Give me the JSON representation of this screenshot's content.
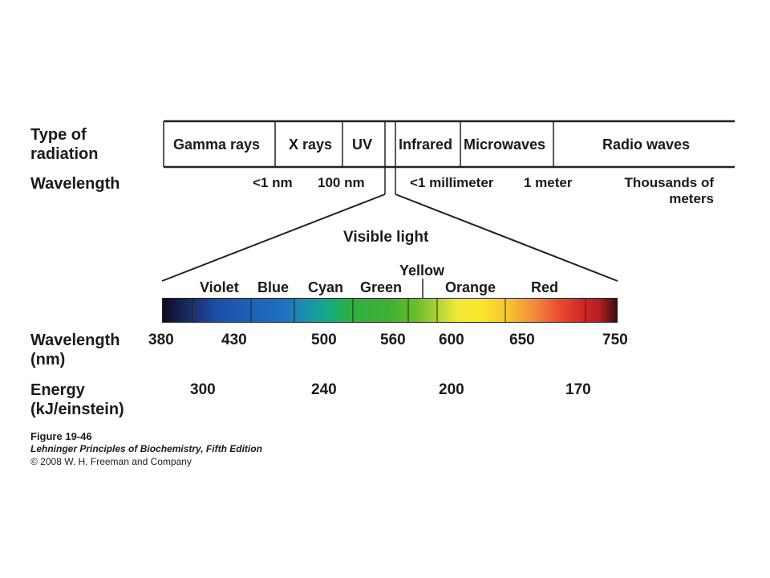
{
  "row_headers": {
    "type_of_radiation": [
      "Type of",
      "radiation"
    ],
    "wavelength": "Wavelength",
    "wavelength_nm": [
      "Wavelength",
      "(nm)"
    ],
    "energy": [
      "Energy",
      "(kJ/einstein)"
    ]
  },
  "radiation_types": [
    "Gamma rays",
    "X rays",
    "UV",
    "Infrared",
    "Microwaves",
    "Radio waves"
  ],
  "wavelengths": {
    "lt1nm": "<1 nm",
    "nm100": "100 nm",
    "lt1mm": "<1 millimeter",
    "meter1": "1 meter",
    "thousands": [
      "Thousands of",
      "meters"
    ]
  },
  "visible_light_title": "Visible light",
  "colors": [
    "Violet",
    "Blue",
    "Cyan",
    "Green",
    "Yellow",
    "Orange",
    "Red"
  ],
  "wavelength_ticks_nm": [
    "380",
    "430",
    "500",
    "560",
    "600",
    "650",
    "750"
  ],
  "energy_ticks": [
    "300",
    "240",
    "200",
    "170"
  ],
  "caption": {
    "figure": "Figure 19-46",
    "book": "Lehninger Principles of Biochemistry, Fifth Edition",
    "copyright": "© 2008 W. H. Freeman and Company"
  }
}
